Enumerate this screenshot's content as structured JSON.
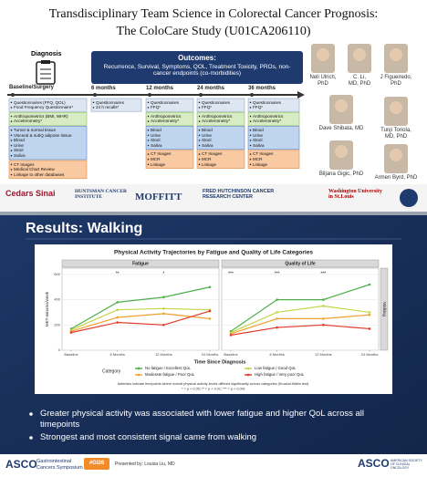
{
  "header": {
    "title_lines": [
      "Transdisciplinary Team Science in Colorectal Cancer Prognosis:",
      "The ColoCare Study (U01CA206110)"
    ]
  },
  "diagnosis": "Diagnosis",
  "outcomes": {
    "heading": "Outcomes:",
    "text": "Recurrence, Survival, Symptoms, QOL, Treatment Toxicity, PROs, non-cancer endpoints (co-morbidities)"
  },
  "columns": [
    {
      "label": "Baseline/Surgery",
      "boxes": [
        {
          "color": "#dde6f1",
          "lines": [
            "Questionnaires (FFQ, QOL)",
            "Food Frequency Questionnaire*"
          ]
        },
        {
          "color": "#d7ecc3",
          "lines": [
            "Anthropometrics (BMI, WHR)",
            "Accelerometry*"
          ]
        },
        {
          "color": "#bfd4ef",
          "lines": [
            "Tumor & normal tissue",
            "Visceral & subQ adipose tissue",
            "Blood",
            "Urine",
            "Stool",
            "Saliva"
          ]
        },
        {
          "color": "#f9c9a1",
          "lines": [
            "CT Images",
            "Medical Chart Review",
            "Linkage to other databases"
          ]
        }
      ]
    },
    {
      "label": "6 months",
      "boxes": [
        {
          "color": "#dde6f1",
          "lines": [
            "Questionnaires",
            "24 h recalls*"
          ]
        }
      ]
    },
    {
      "label": "12 months",
      "boxes": [
        {
          "color": "#dde6f1",
          "lines": [
            "Questionnaires",
            "FFQ*"
          ]
        },
        {
          "color": "#d7ecc3",
          "lines": [
            "Anthropometrics",
            "Accelerometry*"
          ]
        },
        {
          "color": "#bfd4ef",
          "lines": [
            "Blood",
            "Urine",
            "Stool",
            "Saliva"
          ]
        },
        {
          "color": "#f9c9a1",
          "lines": [
            "CT Images",
            "MCR",
            "Linkage"
          ]
        }
      ]
    },
    {
      "label": "24 months",
      "boxes": [
        {
          "color": "#dde6f1",
          "lines": [
            "Questionnaires",
            "FFQ*"
          ]
        },
        {
          "color": "#d7ecc3",
          "lines": [
            "Anthropometrics",
            "Accelerometry*"
          ]
        },
        {
          "color": "#bfd4ef",
          "lines": [
            "Blood",
            "Urine",
            "Stool",
            "Saliva"
          ]
        },
        {
          "color": "#f9c9a1",
          "lines": [
            "CT Images",
            "MCR",
            "Linkage"
          ]
        }
      ]
    },
    {
      "label": "36 months",
      "boxes": [
        {
          "color": "#dde6f1",
          "lines": [
            "Questionnaires",
            "FFQ*"
          ]
        },
        {
          "color": "#d7ecc3",
          "lines": [
            "Anthropometrics",
            "Accelerometry*"
          ]
        },
        {
          "color": "#bfd4ef",
          "lines": [
            "Blood",
            "Urine",
            "Stool",
            "Saliva"
          ]
        },
        {
          "color": "#f9c9a1",
          "lines": [
            "CT Images",
            "MCR",
            "Linkage"
          ]
        }
      ]
    }
  ],
  "team": [
    {
      "lines": [
        "Neli Ulrich,",
        "PhD"
      ]
    },
    {
      "lines": [
        "C. Li,",
        "MD, PhD"
      ]
    },
    {
      "lines": [
        "J Figueiredo,",
        "PhD"
      ]
    },
    {
      "lines": [
        "Dave Shibata, MD"
      ]
    },
    {
      "lines": [
        "Tunji Toriola,",
        "MD, PhD"
      ]
    },
    {
      "lines": [
        "Biljana Gigic, PhD"
      ]
    },
    {
      "lines": [
        "Armen Byrd, PhD"
      ]
    }
  ],
  "logos": [
    "Cedars Sinai",
    "HUNTSMAN CANCER INSTITUTE",
    "MOFFITT",
    "FRED HUTCHINSON CANCER RESEARCH CENTER",
    "Washington University in St.Louis"
  ],
  "results": {
    "title": "Results: Walking",
    "bullets": [
      "Greater physical activity was associated with lower fatigue and higher QoL across all timepoints",
      "Strongest and most consistent signal came from walking"
    ]
  },
  "chart_data": {
    "type": "line",
    "title": "Physical Activity Trajectories by Fatigue and Quality of Life Categories",
    "panels": [
      "Fatigue",
      "Quality of Life"
    ],
    "facet_label": "Walking",
    "categories": [
      "Baseline",
      "6 Months",
      "12 Months",
      "24 Months"
    ],
    "xlabel": "Time Since Diagnosis",
    "ylabel": "MET-minutes/week",
    "ylim": [
      0,
      650
    ],
    "yticks": [
      0,
      200,
      400,
      600
    ],
    "grid": true,
    "legend_title": "Category",
    "series": [
      {
        "name": "No fatigue / Excellent QoL",
        "color": "#4daf4a",
        "values": [
          [
            170,
            380,
            420,
            500
          ],
          [
            150,
            400,
            400,
            520
          ]
        ]
      },
      {
        "name": "Low fatigue / Good QoL",
        "color": "#c3d645",
        "values": [
          [
            160,
            320,
            330,
            320
          ],
          [
            140,
            300,
            350,
            300
          ]
        ]
      },
      {
        "name": "Moderate fatigue / Poor QoL",
        "color": "#f0a030",
        "values": [
          [
            150,
            260,
            290,
            250
          ],
          [
            130,
            250,
            250,
            280
          ]
        ]
      },
      {
        "name": "High fatigue / Very poor QoL",
        "color": "#e0392b",
        "values": [
          [
            140,
            220,
            200,
            310
          ],
          [
            120,
            180,
            200,
            170
          ]
        ]
      }
    ],
    "significance": [
      [
        null,
        "**",
        "*",
        null
      ],
      [
        "***",
        "***",
        "***",
        null
      ]
    ],
    "note": [
      "Asterisks indicate timepoints where overall physical activity levels differed significantly across categories (Kruskal-Wallis test).",
      "* = p < 0.05; ** = p < 0.01; *** = p < 0.001"
    ]
  },
  "footer": {
    "brand": "ASCO",
    "event": [
      "Gastrointestinal",
      "Cancers Symposium"
    ],
    "tag": "#GI26",
    "presenter": "Presented by: Louisa Liu, MD",
    "right_brand": "ASCO",
    "right_sub": "AMERICAN SOCIETY OF CLINICAL ONCOLOGY"
  }
}
